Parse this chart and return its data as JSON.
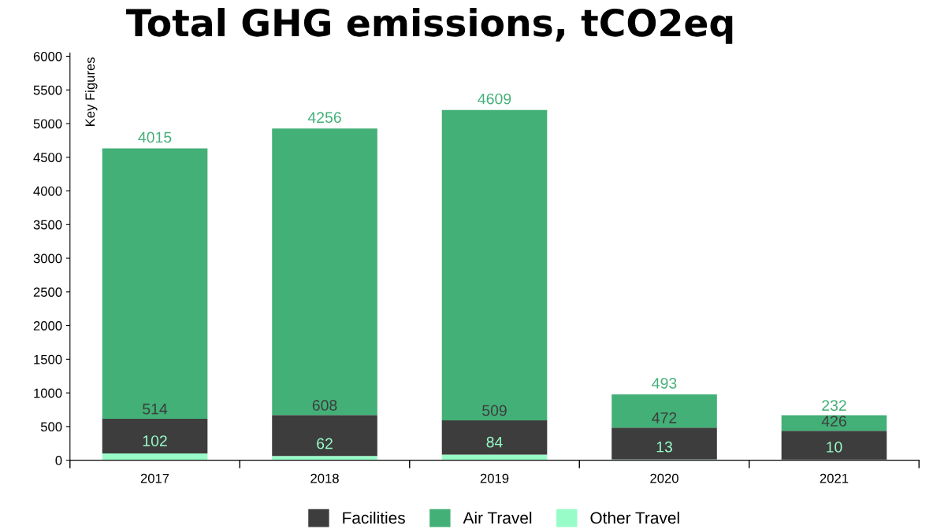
{
  "chart_data": {
    "type": "bar",
    "title": "Total GHG emissions, tCO2eq",
    "ylabel": "Key Figures",
    "categories": [
      "2017",
      "2018",
      "2019",
      "2020",
      "2021"
    ],
    "stacked": true,
    "series": [
      {
        "name": "Other Travel",
        "color": "#98fcc8",
        "values": [
          102,
          62,
          84,
          13,
          10
        ]
      },
      {
        "name": "Facilities",
        "color": "#3d3d3d",
        "values": [
          514,
          608,
          509,
          472,
          426
        ]
      },
      {
        "name": "Air Travel",
        "color": "#43b077",
        "values": [
          4015,
          4256,
          4609,
          493,
          232
        ]
      }
    ],
    "ylim": [
      0,
      6050
    ],
    "yticks": [
      0,
      500,
      1000,
      1500,
      2000,
      2500,
      3000,
      3500,
      4000,
      4500,
      5000,
      5500,
      6000
    ],
    "data_labels": true,
    "legend": "bottom",
    "grid": false
  }
}
